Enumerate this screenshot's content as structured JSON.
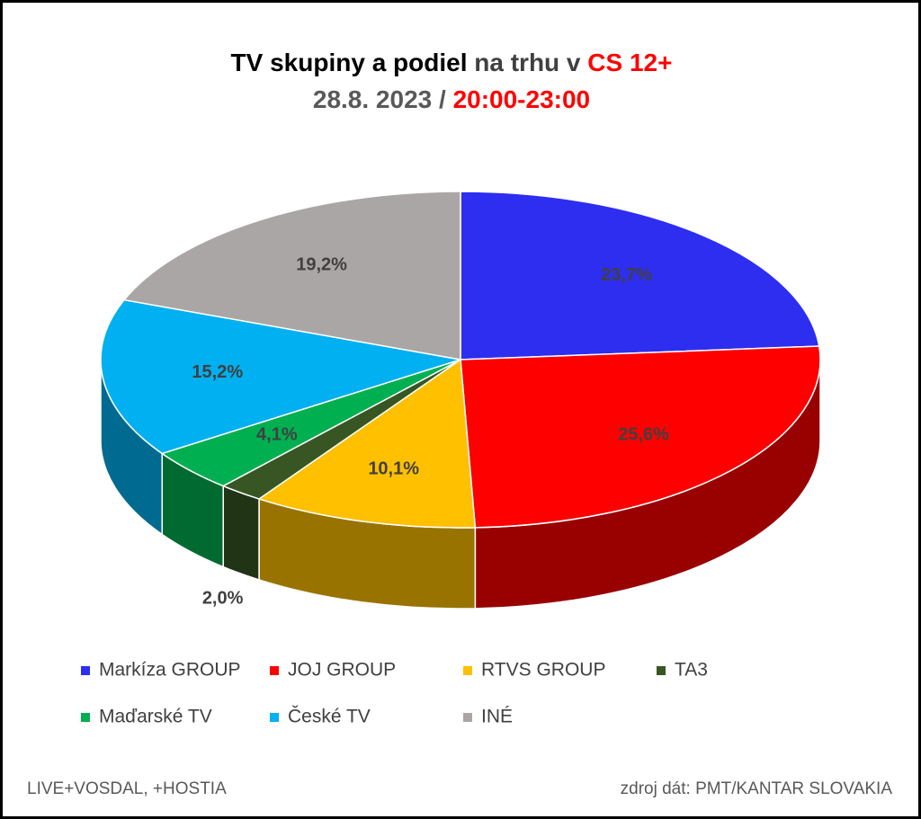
{
  "chart_data": {
    "type": "pie",
    "title": [
      "TV skupiny a podiel",
      "na trhu v",
      "CS 12+"
    ],
    "subtitle": [
      "28.8. 2023 /",
      "20:00-23:00"
    ],
    "series": [
      {
        "name": "Markíza GROUP",
        "color": "#2e2ef0",
        "values": [
          23.7
        ],
        "value_labels": [
          "23,7%"
        ]
      },
      {
        "name": "JOJ GROUP",
        "color": "#ff0000",
        "values": [
          25.6
        ],
        "value_labels": [
          "25,6%"
        ]
      },
      {
        "name": "RTVS GROUP",
        "color": "#ffc000",
        "values": [
          10.1
        ],
        "value_labels": [
          "10,1%"
        ]
      },
      {
        "name": "TA3",
        "color": "#375623",
        "values": [
          2.0
        ],
        "value_labels": [
          "2,0%"
        ]
      },
      {
        "name": "Maďarské  TV",
        "color": "#00b050",
        "values": [
          4.1
        ],
        "value_labels": [
          "4,1%"
        ]
      },
      {
        "name": "České  TV",
        "color": "#00b0f0",
        "values": [
          15.2
        ],
        "value_labels": [
          "15,2%"
        ]
      },
      {
        "name": "INÉ",
        "color": "#aba6a6",
        "values": [
          19.2
        ],
        "value_labels": [
          "19,2%"
        ]
      }
    ],
    "notes": [
      "LIVE+VOSDAL, +HOSTIA",
      "zdroj dát: PMT/KANTAR SLOVAKIA"
    ]
  }
}
